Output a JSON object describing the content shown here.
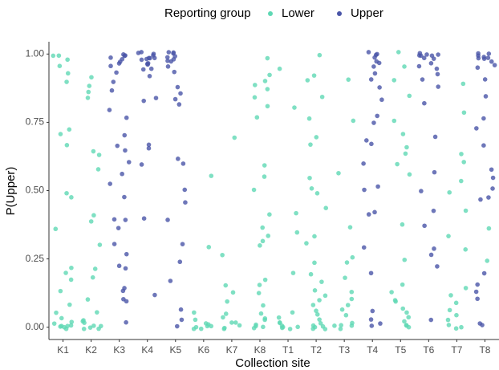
{
  "chart_data": {
    "type": "strip",
    "legend_title": "Reporting group",
    "legend_position": "top",
    "x_label": "Collection site",
    "y_label": "P(Upper)",
    "categories": [
      "K1",
      "K2",
      "K3",
      "K4",
      "K5",
      "K6",
      "K7",
      "K8",
      "T1",
      "T2",
      "T3",
      "T4",
      "T5",
      "T6",
      "T7",
      "T8"
    ],
    "ylim": [
      -0.045,
      1.045
    ],
    "yticks": [
      {
        "value": 0,
        "label": "0.00"
      },
      0.25,
      {
        "value": 0.5,
        "label": "0.50"
      },
      0.75,
      {
        "value": 1,
        "label": "1.00"
      }
    ],
    "grid": false,
    "series": [
      {
        "name": "Lower",
        "color": "#5fd8b4",
        "values": [
          [
            1.0,
            0.99,
            0.98,
            0.96,
            0.93,
            0.9,
            0.72,
            0.71,
            0.66,
            0.49,
            0.48,
            0.36,
            0.22,
            0.2,
            0.18,
            0.13,
            0.08,
            0.05,
            0.03,
            0.02,
            0.01,
            0.01,
            0,
            0,
            0,
            0,
            0
          ],
          [
            0.91,
            0.88,
            0.86,
            0.84,
            0.64,
            0.63,
            0.58,
            0.41,
            0.39,
            0.3,
            0.21,
            0.18,
            0.1,
            0.06,
            0.03,
            0.02,
            0.01,
            0,
            0,
            0,
            0,
            0
          ],
          [],
          [],
          [],
          [
            0.56,
            0.29,
            0.05,
            0.02,
            0.01,
            0.01,
            0,
            0,
            0,
            0,
            0
          ],
          [
            0.7,
            0.27,
            0.16,
            0.13,
            0.09,
            0.05,
            0.04,
            0.02,
            0.01,
            0,
            0,
            0
          ],
          [
            0.99,
            0.93,
            0.9,
            0.89,
            0.87,
            0.84,
            0.81,
            0.77,
            0.59,
            0.55,
            0.5,
            0.42,
            0.37,
            0.33,
            0.31,
            0.3,
            0.18,
            0.15,
            0.12,
            0.08,
            0.05,
            0.03,
            0.02,
            0.01,
            0,
            0,
            0
          ],
          [
            0.95,
            0.81,
            0.42,
            0.34,
            0.2,
            0.06,
            0.03,
            0.01,
            0.01,
            0,
            0,
            0,
            0,
            0
          ],
          [
            1.0,
            0.92,
            0.9,
            0.85,
            0.77,
            0.69,
            0.67,
            0.54,
            0.51,
            0.49,
            0.43,
            0.33,
            0.3,
            0.23,
            0.2,
            0.17,
            0.14,
            0.12,
            0.1,
            0.08,
            0.06,
            0.05,
            0.03,
            0.02,
            0.01,
            0,
            0,
            0,
            0
          ],
          [
            0.91,
            0.76,
            0.56,
            0.36,
            0.26,
            0.24,
            0.18,
            0.13,
            0.1,
            0.08,
            0.06,
            0.04,
            0.02,
            0.01,
            0,
            0,
            0
          ],
          [],
          [
            1.0,
            0.96,
            0.9,
            0.85,
            0.75,
            0.7,
            0.66,
            0.63,
            0.6,
            0.56,
            0.38,
            0.25,
            0.15,
            0.13,
            0.1,
            0.09,
            0.07,
            0.05,
            0.03,
            0.02,
            0.01,
            0,
            0
          ],
          [],
          [
            0.89,
            0.79,
            0.64,
            0.6,
            0.53,
            0.5,
            0.42,
            0.33,
            0.29,
            0.14,
            0.11,
            0.09,
            0.06,
            0.04,
            0.02,
            0.01,
            0,
            0
          ],
          [
            0.36,
            0.25
          ]
        ]
      },
      {
        "name": "Upper",
        "color": "#4a55a8",
        "values": [
          [],
          [],
          [
            1,
            1,
            0.99,
            0.99,
            0.98,
            0.97,
            0.96,
            0.95,
            0.93,
            0.9,
            0.86,
            0.8,
            0.76,
            0.7,
            0.67,
            0.64,
            0.6,
            0.56,
            0.52,
            0.48,
            0.4,
            0.39,
            0.36,
            0.31,
            0.27,
            0.23,
            0.22,
            0.15,
            0.13,
            0.1,
            0.09,
            0.02
          ],
          [
            1,
            1,
            1,
            1,
            0.99,
            0.99,
            0.99,
            0.98,
            0.98,
            0.97,
            0.96,
            0.96,
            0.95,
            0.94,
            0.92,
            0.84,
            0.83,
            0.67,
            0.65,
            0.59,
            0.4,
            0.12
          ],
          [
            1,
            1,
            1,
            0.99,
            0.99,
            0.98,
            0.98,
            0.97,
            0.95,
            0.93,
            0.88,
            0.86,
            0.84,
            0.81,
            0.62,
            0.6,
            0.5,
            0.45,
            0.39,
            0.31,
            0.24,
            0.17,
            0.06,
            0.03,
            0.01
          ],
          [],
          [],
          [],
          [],
          [],
          [],
          [
            1,
            1,
            0.99,
            0.99,
            0.98,
            0.97,
            0.95,
            0.93,
            0.9,
            0.88,
            0.83,
            0.78,
            0.75,
            0.68,
            0.67,
            0.6,
            0.52,
            0.5,
            0.42,
            0.41,
            0.29,
            0.2,
            0.06,
            0.03,
            0.02,
            0.01
          ],
          [],
          [
            1,
            1,
            1,
            1,
            0.99,
            0.99,
            0.98,
            0.98,
            0.97,
            0.96,
            0.95,
            0.92,
            0.9,
            0.88,
            0.82,
            0.7,
            0.56,
            0.5,
            0.42,
            0.37,
            0.29,
            0.26,
            0.23,
            0.03
          ],
          [],
          [
            1,
            1,
            1,
            0.99,
            0.99,
            0.98,
            0.98,
            0.97,
            0.96,
            0.95,
            0.9,
            0.85,
            0.76,
            0.73,
            0.66,
            0.57,
            0.55,
            0.51,
            0.48,
            0.47,
            0.19,
            0.15,
            0.13,
            0.1,
            0.01,
            0.01
          ]
        ]
      }
    ]
  }
}
